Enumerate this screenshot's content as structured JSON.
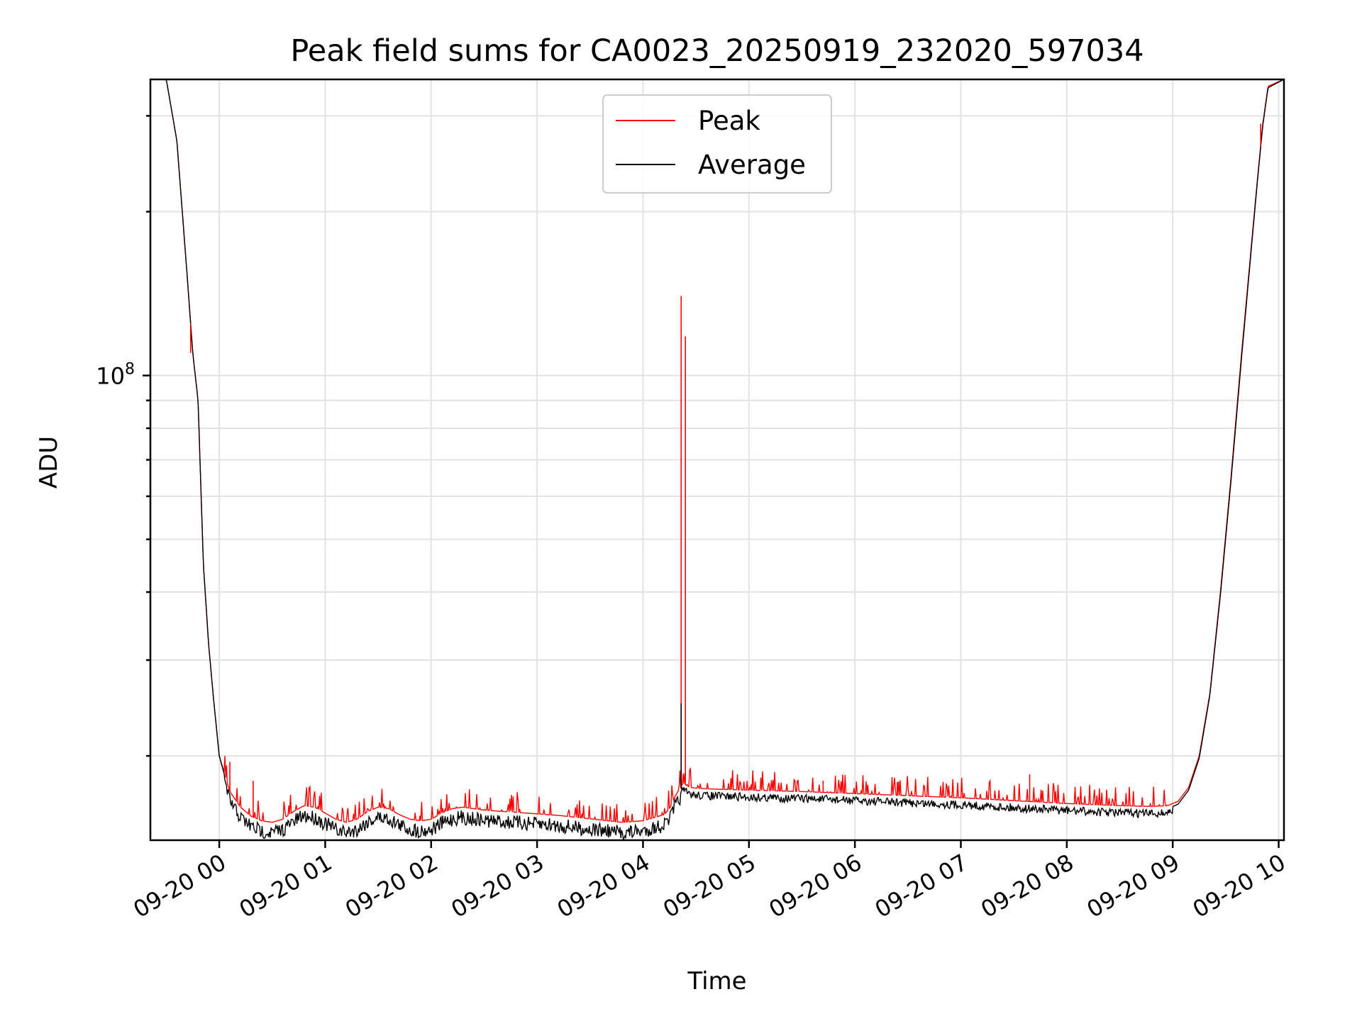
{
  "chart_data": {
    "type": "line",
    "title": "Peak field sums for CA0023_20250919_232020_597034",
    "xlabel": "Time",
    "ylabel": "ADU",
    "yscale": "log",
    "ylim": [
      14000000,
      350000000
    ],
    "xlim": [
      -0.65,
      10.05
    ],
    "grid": true,
    "legend_position": "upper center",
    "x_ticks": [
      {
        "value": 0,
        "label": "09-20 00"
      },
      {
        "value": 1,
        "label": "09-20 01"
      },
      {
        "value": 2,
        "label": "09-20 02"
      },
      {
        "value": 3,
        "label": "09-20 03"
      },
      {
        "value": 4,
        "label": "09-20 04"
      },
      {
        "value": 5,
        "label": "09-20 05"
      },
      {
        "value": 6,
        "label": "09-20 06"
      },
      {
        "value": 7,
        "label": "09-20 07"
      },
      {
        "value": 8,
        "label": "09-20 08"
      },
      {
        "value": 9,
        "label": "09-20 09"
      },
      {
        "value": 10,
        "label": "09-20 10"
      }
    ],
    "y_major_ticks": [
      {
        "value": 100000000,
        "label_base": "10",
        "label_exp": "8"
      }
    ],
    "y_minor_ticks": [
      20000000,
      30000000,
      40000000,
      50000000,
      60000000,
      70000000,
      80000000,
      90000000,
      200000000,
      300000000
    ],
    "series": [
      {
        "name": "Peak",
        "color": "#ff0000",
        "x": [
          -0.65,
          -0.5,
          -0.4,
          -0.3,
          -0.25,
          -0.2,
          -0.15,
          -0.1,
          -0.05,
          0.0,
          0.1,
          0.2,
          0.3,
          0.4,
          0.5,
          0.6,
          0.7,
          0.8,
          0.9,
          1.0,
          1.1,
          1.2,
          1.3,
          1.4,
          1.5,
          1.6,
          1.7,
          1.8,
          1.9,
          2.0,
          2.1,
          2.2,
          2.3,
          2.4,
          2.5,
          2.6,
          2.7,
          2.8,
          2.9,
          3.0,
          3.2,
          3.4,
          3.6,
          3.8,
          4.0,
          4.1,
          4.2,
          4.25,
          4.3,
          4.35,
          4.38,
          4.4,
          4.42,
          4.45,
          4.5,
          4.6,
          4.8,
          5.0,
          5.5,
          6.0,
          6.5,
          7.0,
          7.5,
          8.0,
          8.5,
          8.8,
          8.95,
          9.05,
          9.15,
          9.25,
          9.35,
          9.45,
          9.55,
          9.65,
          9.75,
          9.8,
          9.85,
          9.9,
          10.05
        ],
        "y": [
          350000000,
          350000000,
          270000000,
          150000000,
          110000000,
          90000000,
          45000000,
          32000000,
          25000000,
          20000000,
          17200000,
          16100000,
          15500000,
          15200000,
          15100000,
          15300000,
          15800000,
          16200000,
          16100000,
          15700000,
          15300000,
          15100000,
          15300000,
          15800000,
          16100000,
          16000000,
          15600000,
          15300000,
          15200000,
          15300000,
          15700000,
          16000000,
          16100000,
          16000000,
          15900000,
          15850000,
          15800000,
          15750000,
          15700000,
          15650000,
          15550000,
          15400000,
          15250000,
          15100000,
          15200000,
          15400000,
          15600000,
          16000000,
          16800000,
          17500000,
          17800000,
          17700000,
          17600000,
          17500000,
          17450000,
          17400000,
          17350000,
          17300000,
          17200000,
          17050000,
          16900000,
          16750000,
          16550000,
          16350000,
          16200000,
          16150000,
          16200000,
          16500000,
          17500000,
          20000000,
          26000000,
          40000000,
          65000000,
          110000000,
          180000000,
          230000000,
          290000000,
          340000000,
          350000000
        ]
      },
      {
        "name": "Average",
        "color": "#000000",
        "x": [
          -0.65,
          -0.5,
          -0.4,
          -0.3,
          -0.25,
          -0.2,
          -0.15,
          -0.1,
          -0.05,
          0.0,
          0.1,
          0.2,
          0.3,
          0.4,
          0.5,
          0.6,
          0.7,
          0.8,
          0.9,
          1.0,
          1.1,
          1.2,
          1.3,
          1.4,
          1.5,
          1.6,
          1.7,
          1.8,
          1.9,
          2.0,
          2.1,
          2.2,
          2.3,
          2.4,
          2.5,
          2.6,
          2.7,
          2.8,
          2.9,
          3.0,
          3.2,
          3.4,
          3.6,
          3.8,
          4.0,
          4.1,
          4.2,
          4.25,
          4.3,
          4.35,
          4.38,
          4.4,
          4.42,
          4.45,
          4.5,
          4.6,
          4.8,
          5.0,
          5.5,
          6.0,
          6.5,
          7.0,
          7.5,
          8.0,
          8.5,
          8.8,
          8.95,
          9.05,
          9.15,
          9.25,
          9.35,
          9.45,
          9.55,
          9.65,
          9.75,
          9.8,
          9.85,
          9.9,
          10.05
        ],
        "y": [
          350000000,
          350000000,
          270000000,
          150000000,
          110000000,
          90000000,
          45000000,
          32000000,
          25000000,
          20000000,
          17000000,
          15900000,
          15300000,
          15000000,
          14900000,
          15100000,
          15600000,
          16000000,
          15900000,
          15500000,
          15100000,
          14900000,
          15100000,
          15600000,
          15900000,
          15800000,
          15400000,
          15100000,
          15000000,
          15100000,
          15500000,
          15800000,
          15900000,
          15800000,
          15700000,
          15650000,
          15600000,
          15550000,
          15500000,
          15450000,
          15350000,
          15200000,
          15050000,
          14900000,
          15000000,
          15200000,
          15400000,
          15800000,
          16600000,
          17300000,
          17600000,
          17500000,
          17400000,
          17300000,
          17250000,
          17200000,
          17150000,
          17100000,
          17000000,
          16850000,
          16700000,
          16550000,
          16350000,
          16150000,
          16000000,
          15950000,
          16000000,
          16300000,
          17300000,
          19800000,
          25800000,
          39500000,
          64000000,
          108000000,
          178000000,
          228000000,
          288000000,
          338000000,
          350000000
        ]
      }
    ],
    "spikes": [
      {
        "series": "Peak",
        "x": 4.36,
        "y": 140000000
      },
      {
        "series": "Peak",
        "x": 4.4,
        "y": 118000000
      },
      {
        "series": "Average",
        "x": 4.36,
        "y": 25000000
      },
      {
        "series": "Peak",
        "x": -0.27,
        "y": 110000000
      },
      {
        "series": "Peak",
        "x": 0.1,
        "y": 19500000
      },
      {
        "series": "Peak",
        "x": 0.32,
        "y": 18000000
      },
      {
        "series": "Peak",
        "x": 7.65,
        "y": 18500000
      },
      {
        "series": "Peak",
        "x": 5.7,
        "y": 18000000
      },
      {
        "series": "Peak",
        "x": 6.4,
        "y": 17900000
      },
      {
        "series": "Peak",
        "x": 9.83,
        "y": 290000000
      }
    ]
  }
}
